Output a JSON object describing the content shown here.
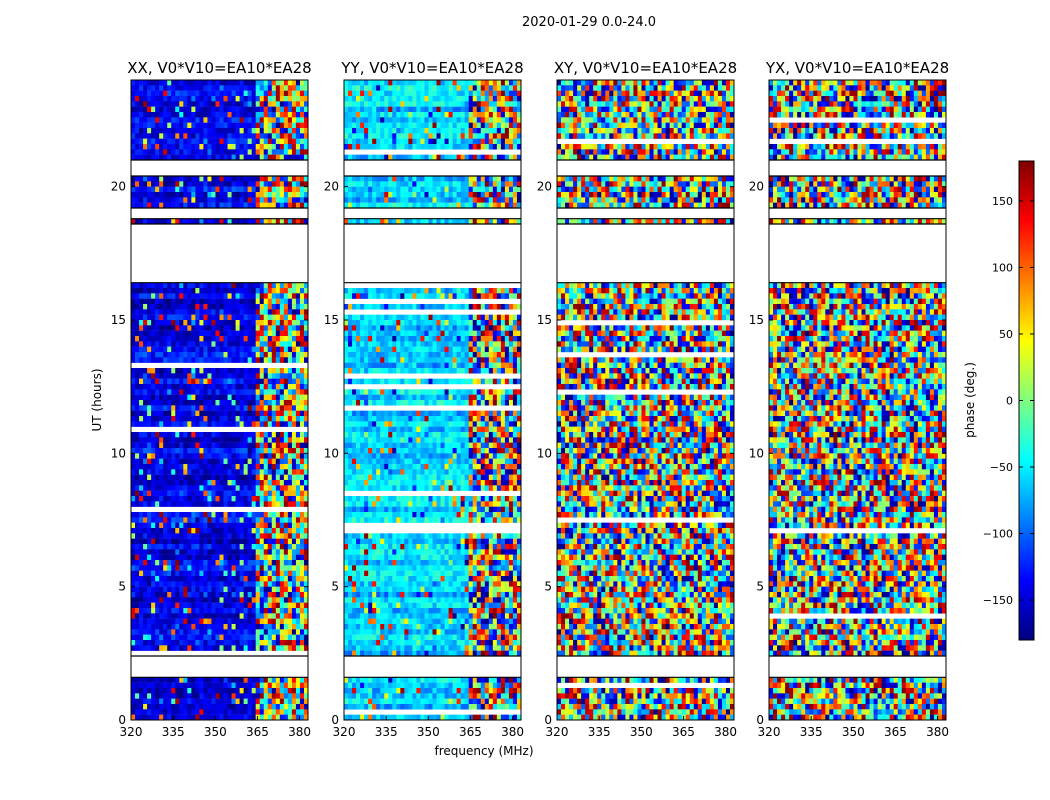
{
  "chart_data": {
    "type": "heatmap",
    "suptitle": "2020-01-29 0.0-24.0",
    "xlabel": "frequency (MHz)",
    "ylabel": "UT (hours)",
    "xlim": [
      320,
      383
    ],
    "ylim": [
      0,
      24
    ],
    "xticks": [
      320,
      335,
      350,
      365,
      380
    ],
    "yticks": [
      0,
      5,
      10,
      15,
      20
    ],
    "colorbar": {
      "label": "phase (deg.)",
      "range": [
        -180,
        180
      ],
      "ticks": [
        150,
        100,
        50,
        0,
        -50,
        -100,
        -150
      ],
      "tick_labels": [
        "150",
        "100",
        "50",
        "0",
        "−50",
        "−100",
        "−150"
      ],
      "colormap": [
        "#00007f",
        "#0000ff",
        "#007fff",
        "#00ffff",
        "#7fff7f",
        "#ffff00",
        "#ff7f00",
        "#ff0000",
        "#7f0000"
      ]
    },
    "flagged_ut_ranges": [
      [
        1.6,
        2.4
      ],
      [
        16.4,
        18.6
      ],
      [
        18.8,
        19.2
      ],
      [
        20.4,
        21.0
      ]
    ],
    "panels": [
      {
        "title": "XX, V0*V10=EA10*EA28",
        "base_phase_deg": -140,
        "coherent_until_mhz": 364
      },
      {
        "title": "YY, V0*V10=EA10*EA28",
        "base_phase_deg": -60,
        "coherent_until_mhz": 364
      },
      {
        "title": "XY, V0*V10=EA10*EA28",
        "base_phase_deg": null,
        "coherent_until_mhz": 320
      },
      {
        "title": "YX, V0*V10=EA10*EA28",
        "base_phase_deg": null,
        "coherent_until_mhz": 320
      }
    ]
  }
}
